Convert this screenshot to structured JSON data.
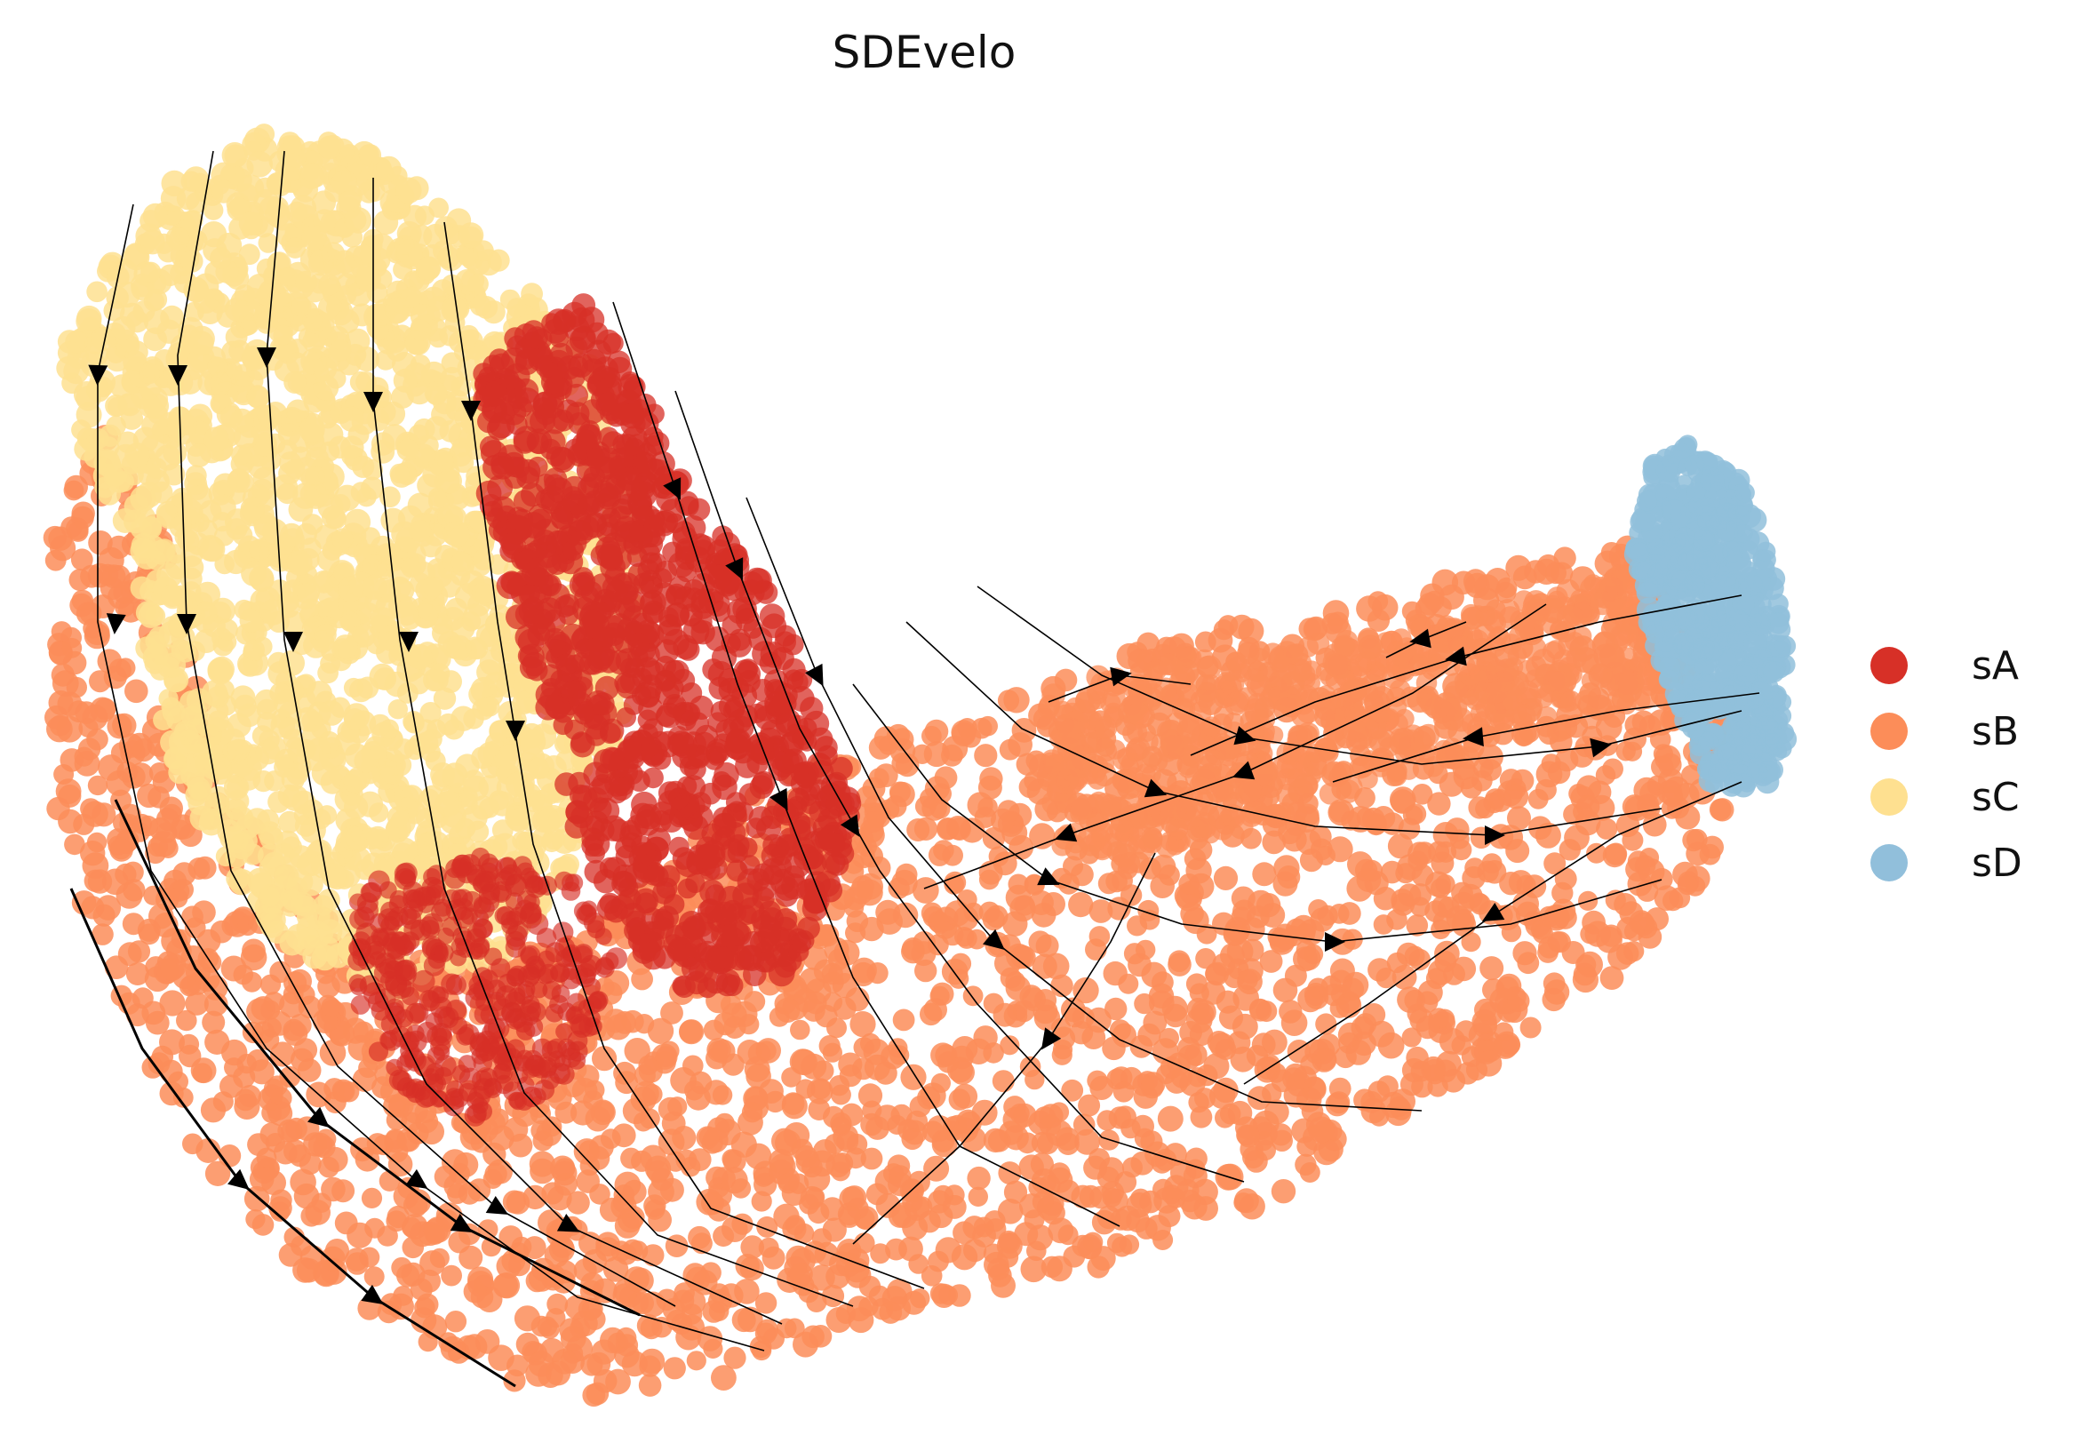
{
  "title": "SDEvelo",
  "colors": {
    "sA": "#d73027",
    "sB": "#fc8d59",
    "sC": "#fee090",
    "sD": "#91bfdb"
  },
  "legend": [
    {
      "label": "sA",
      "color": "#d73027"
    },
    {
      "label": "sB",
      "color": "#fc8d59"
    },
    {
      "label": "sC",
      "color": "#fee090"
    },
    {
      "label": "sD",
      "color": "#91bfdb"
    }
  ],
  "chart_data": {
    "type": "scatter",
    "subtype": "velocity stream embedding",
    "title": "SDEvelo",
    "axes_visible": false,
    "grid": false,
    "legend_position": "right",
    "series": [
      {
        "name": "sA",
        "color": "#d73027"
      },
      {
        "name": "sB",
        "color": "#fc8d59"
      },
      {
        "name": "sC",
        "color": "#fee090"
      },
      {
        "name": "sD",
        "color": "#91bfdb"
      }
    ]
  }
}
